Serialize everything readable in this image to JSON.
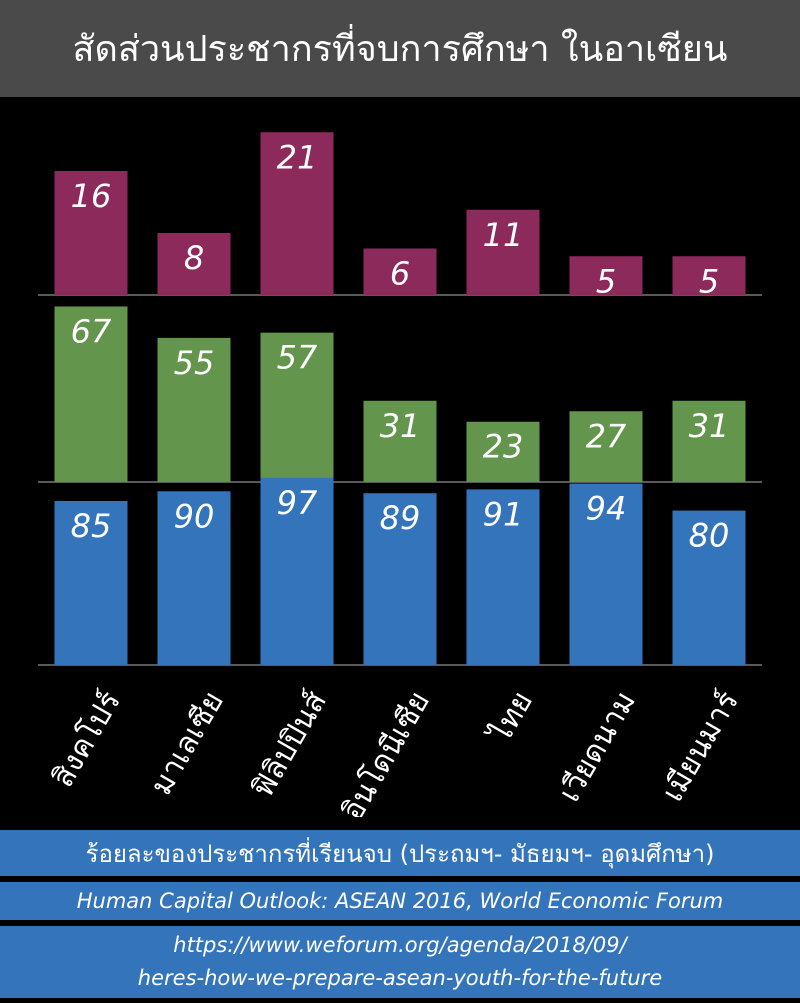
{
  "title": "สัดส่วนประชากรที่จบการศึกษา ในอาเซียน",
  "colors": {
    "tertiary": "#8c2a5c",
    "secondary": "#64954c",
    "primary": "#3474bb",
    "title_bg": "#4a4a4a",
    "background": "#000000"
  },
  "chart_data": {
    "type": "bar",
    "layout": "stacked-panels",
    "categories": [
      "สิงคโปร์",
      "มาเลเซีย",
      "ฟิลิปปินส์",
      "อินโดนีเซีย",
      "ไทย",
      "เวียดนาม",
      "เมียนมาร์"
    ],
    "series": [
      {
        "color": "#8c2a5c",
        "values": [
          16,
          8,
          21,
          6,
          11,
          5,
          5
        ]
      },
      {
        "color": "#64954c",
        "values": [
          67,
          55,
          57,
          31,
          23,
          27,
          31
        ]
      },
      {
        "color": "#3474bb",
        "values": [
          85,
          90,
          97,
          89,
          91,
          94,
          80
        ]
      }
    ],
    "grid": false
  },
  "footer": {
    "caption": "ร้อยละของประชากรที่เรียนจบ (ประถมฯ- มัธยมฯ- อุดมศึกษา)",
    "source": "Human Capital Outlook: ASEAN 2016, World Economic Forum",
    "url_line1": "https://www.weforum.org/agenda/2018/09/",
    "url_line2": "heres-how-we-prepare-asean-youth-for-the-future"
  }
}
